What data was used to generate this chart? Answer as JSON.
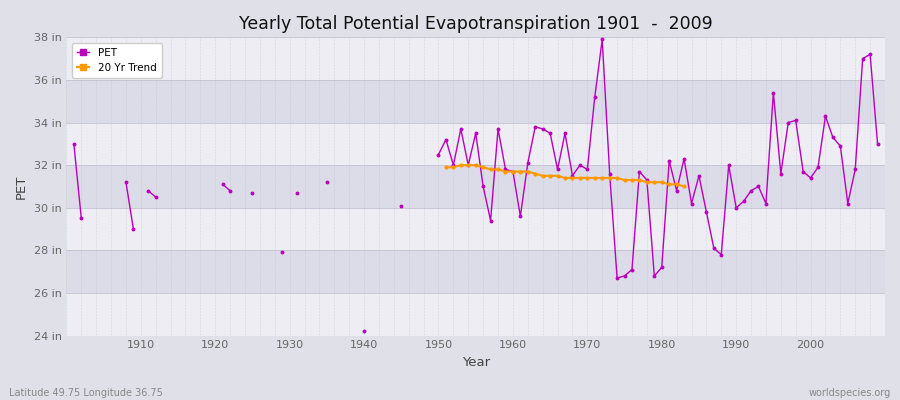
{
  "title": "Yearly Total Potential Evapotranspiration 1901  -  2009",
  "xlabel": "Year",
  "ylabel": "PET",
  "footnote_left": "Latitude 49.75 Longitude 36.75",
  "footnote_right": "worldspecies.org",
  "ylim": [
    24,
    38
  ],
  "ytick_labels": [
    "24 in",
    "26 in",
    "28 in",
    "30 in",
    "32 in",
    "34 in",
    "36 in",
    "38 in"
  ],
  "ytick_values": [
    24,
    26,
    28,
    30,
    32,
    34,
    36,
    38
  ],
  "bg_color": "#e0e0e8",
  "plot_bg_color": "#dcdce8",
  "pet_color": "#bb00bb",
  "trend_color": "#ff9900",
  "years": [
    1901,
    1902,
    1903,
    1904,
    1905,
    1906,
    1907,
    1908,
    1909,
    1910,
    1911,
    1912,
    1913,
    1914,
    1915,
    1916,
    1917,
    1918,
    1919,
    1920,
    1921,
    1922,
    1923,
    1924,
    1925,
    1926,
    1927,
    1928,
    1929,
    1930,
    1931,
    1932,
    1933,
    1934,
    1935,
    1936,
    1937,
    1938,
    1939,
    1940,
    1941,
    1942,
    1943,
    1944,
    1945,
    1946,
    1947,
    1948,
    1949,
    1950,
    1951,
    1952,
    1953,
    1954,
    1955,
    1956,
    1957,
    1958,
    1959,
    1960,
    1961,
    1962,
    1963,
    1964,
    1965,
    1966,
    1967,
    1968,
    1969,
    1970,
    1971,
    1972,
    1973,
    1974,
    1975,
    1976,
    1977,
    1978,
    1979,
    1980,
    1981,
    1982,
    1983,
    1984,
    1985,
    1986,
    1987,
    1988,
    1989,
    1990,
    1991,
    1992,
    1993,
    1994,
    1995,
    1996,
    1997,
    1998,
    1999,
    2000,
    2001,
    2002,
    2003,
    2004,
    2005,
    2006,
    2007,
    2008,
    2009
  ],
  "pet_values": [
    33.0,
    29.5,
    null,
    null,
    null,
    null,
    null,
    31.2,
    29.0,
    null,
    30.8,
    30.5,
    null,
    null,
    null,
    null,
    null,
    null,
    null,
    null,
    31.1,
    30.8,
    null,
    null,
    30.7,
    null,
    null,
    null,
    27.9,
    null,
    30.7,
    null,
    null,
    null,
    31.2,
    null,
    null,
    null,
    null,
    24.2,
    null,
    null,
    null,
    null,
    30.1,
    null,
    null,
    null,
    null,
    32.5,
    33.2,
    32.0,
    33.7,
    32.0,
    33.5,
    31.0,
    29.4,
    33.7,
    31.8,
    31.7,
    29.6,
    32.1,
    33.8,
    33.7,
    33.5,
    31.8,
    33.5,
    31.5,
    32.0,
    31.8,
    35.2,
    37.9,
    31.6,
    26.7,
    26.8,
    27.1,
    31.7,
    31.3,
    26.8,
    27.2,
    32.2,
    30.8,
    32.3,
    30.2,
    31.5,
    29.8,
    28.1,
    27.8,
    32.0,
    30.0,
    30.3,
    30.8,
    31.0,
    30.2,
    35.4,
    31.6,
    34.0,
    34.1,
    31.7,
    31.4,
    31.9,
    34.3,
    33.3,
    32.9,
    30.2,
    31.8,
    37.0,
    37.2,
    33.0
  ],
  "trend_values_years": [
    1951,
    1952,
    1953,
    1954,
    1955,
    1956,
    1957,
    1958,
    1959,
    1960,
    1961,
    1962,
    1963,
    1964,
    1965,
    1966,
    1967,
    1968,
    1969,
    1970,
    1971,
    1972,
    1973,
    1974,
    1975,
    1976,
    1977,
    1978,
    1979,
    1980,
    1981,
    1982,
    1983
  ],
  "trend_values": [
    31.9,
    31.9,
    32.0,
    32.0,
    32.0,
    31.9,
    31.8,
    31.8,
    31.7,
    31.7,
    31.7,
    31.7,
    31.6,
    31.5,
    31.5,
    31.5,
    31.4,
    31.4,
    31.4,
    31.4,
    31.4,
    31.4,
    31.4,
    31.4,
    31.3,
    31.3,
    31.3,
    31.2,
    31.2,
    31.2,
    31.1,
    31.1,
    31.0
  ]
}
